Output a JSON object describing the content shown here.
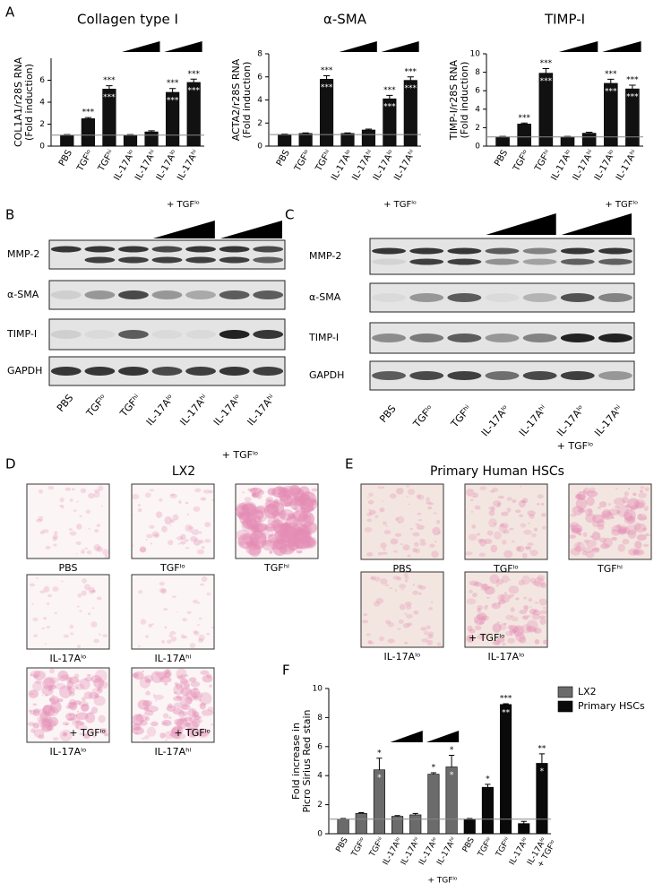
{
  "panel_labels": [
    "A",
    "B",
    "C",
    "D",
    "E",
    "F"
  ],
  "chart_data": [
    {
      "type": "bar",
      "title": "Collagen type I",
      "y_label": [
        "COL1A1/r28S RNA",
        "(Fold induction)"
      ],
      "categories": [
        "PBS",
        "TGFˡᵒ",
        "TGFʰⁱ",
        "IL-17Aˡᵒ",
        "IL-17Aʰⁱ",
        "IL-17Aˡᵒ",
        "IL-17Aʰⁱ"
      ],
      "values": [
        1.0,
        2.5,
        5.2,
        1.0,
        1.3,
        4.9,
        5.8
      ],
      "errors": [
        0.05,
        0.1,
        0.3,
        0.05,
        0.1,
        0.35,
        0.3
      ],
      "sig_above": [
        null,
        "***",
        "***",
        null,
        null,
        "***",
        "***"
      ],
      "sig_inside": [
        null,
        null,
        "***",
        null,
        null,
        "***",
        "***"
      ],
      "color": "#111111",
      "ylim": [
        0,
        8
      ],
      "yticks": [
        0,
        2,
        4,
        6
      ],
      "hline": 1,
      "group_labels": [
        "+ TGFˡᵒ"
      ]
    },
    {
      "type": "bar",
      "title": "α-SMA",
      "y_label": [
        "ACTA2/r28S RNA",
        "(Fold induction)"
      ],
      "categories": [
        "PBS",
        "TGFˡᵒ",
        "TGFʰⁱ",
        "IL-17Aˡᵒ",
        "IL-17Aʰⁱ",
        "IL-17Aˡᵒ",
        "IL-17Aʰⁱ"
      ],
      "values": [
        1.0,
        1.1,
        5.8,
        1.1,
        1.4,
        4.1,
        5.7
      ],
      "errors": [
        0.05,
        0.05,
        0.3,
        0.05,
        0.08,
        0.3,
        0.3
      ],
      "sig_above": [
        null,
        null,
        "***",
        null,
        null,
        "***",
        "***"
      ],
      "sig_inside": [
        null,
        null,
        "***",
        null,
        null,
        "***",
        "***"
      ],
      "color": "#111111",
      "ylim": [
        0,
        8
      ],
      "yticks": [
        0,
        2,
        4,
        6,
        8
      ],
      "hline": 1,
      "group_labels": [
        "+ TGFˡᵒ"
      ]
    },
    {
      "type": "bar",
      "title": "TIMP-I",
      "y_label": [
        "TIMP-I/r28S RNA",
        "(Fold induction)"
      ],
      "categories": [
        "PBS",
        "TGFˡᵒ",
        "TGFʰⁱ",
        "IL-17Aˡᵒ",
        "IL-17Aʰⁱ",
        "IL-17Aˡᵒ",
        "IL-17Aʰⁱ"
      ],
      "values": [
        1.0,
        2.4,
        7.9,
        1.0,
        1.4,
        6.8,
        6.2
      ],
      "errors": [
        0.05,
        0.1,
        0.5,
        0.05,
        0.1,
        0.45,
        0.4
      ],
      "sig_above": [
        null,
        "***",
        "***",
        null,
        null,
        "***",
        "***"
      ],
      "sig_inside": [
        null,
        null,
        "***",
        null,
        null,
        "***",
        "***"
      ],
      "color": "#111111",
      "ylim": [
        0,
        10
      ],
      "yticks": [
        0,
        2,
        4,
        6,
        8,
        10
      ],
      "hline": 1,
      "group_labels": [
        "+ TGFˡᵒ"
      ]
    },
    {
      "type": "bar",
      "y_label": [
        "Fold increase in",
        "Picro Sirius Red stain"
      ],
      "categories": [
        "PBS",
        "TGFˡᵒ",
        "TGFʰⁱ",
        "IL-17Aˡᵒ",
        "IL-17Aʰⁱ",
        "IL-17Aˡᵒ",
        "IL-17Aʰⁱ",
        "PBS",
        "TGFˡᵒ",
        "TGFʰⁱ",
        "IL-17Aˡᵒ",
        "IL-17Aˡᵒ"
      ],
      "series": [
        {
          "name": "LX2",
          "color": "#6b6b6b",
          "values": [
            1.0,
            1.4,
            4.4,
            1.2,
            1.3,
            4.1,
            4.6,
            null,
            null,
            null,
            null,
            null
          ],
          "errors": [
            0.05,
            0.05,
            0.8,
            0.05,
            0.1,
            0.1,
            0.8,
            null,
            null,
            null,
            null,
            null
          ],
          "sig_above": [
            null,
            null,
            "*",
            null,
            null,
            "*",
            "*",
            null,
            null,
            null,
            null,
            null
          ],
          "sig_inside": [
            null,
            null,
            "*",
            null,
            null,
            null,
            "*",
            null,
            null,
            null,
            null,
            null
          ]
        },
        {
          "name": "Primary HSCs",
          "color": "#0a0a0a",
          "values": [
            null,
            null,
            null,
            null,
            null,
            null,
            null,
            1.0,
            3.2,
            8.9,
            0.7,
            4.85
          ],
          "errors": [
            null,
            null,
            null,
            null,
            null,
            null,
            null,
            0.05,
            0.2,
            0.05,
            0.15,
            0.65
          ],
          "sig_above": [
            null,
            null,
            null,
            null,
            null,
            null,
            null,
            null,
            "*",
            "***",
            null,
            "**"
          ],
          "sig_inside": [
            null,
            null,
            null,
            null,
            null,
            null,
            null,
            null,
            null,
            "**",
            null,
            "*"
          ]
        }
      ],
      "ylim": [
        0,
        10
      ],
      "yticks": [
        0,
        2,
        4,
        6,
        8,
        10
      ],
      "hline": 1,
      "legend": "top-right",
      "group_labels": [
        "+ TGFˡᵒ",
        "+ TGFˡᵒ"
      ]
    }
  ],
  "blots": [
    {
      "rows": [
        "MMP-2",
        "α-SMA",
        "TIMP-I",
        "GAPDH"
      ],
      "lanes": [
        "PBS",
        "TGFˡᵒ",
        "TGFʰⁱ",
        "IL-17Aˡᵒ",
        "IL-17Aʰⁱ",
        "IL-17Aˡᵒ",
        "IL-17Aʰⁱ"
      ],
      "group_label": "+ TGFˡᵒ"
    },
    {
      "rows": [
        "MMP-2",
        "α-SMA",
        "TIMP-I",
        "GAPDH"
      ],
      "lanes": [
        "PBS",
        "TGFˡᵒ",
        "TGFʰⁱ",
        "IL-17Aˡᵒ",
        "IL-17Aʰⁱ",
        "IL-17Aˡᵒ",
        "IL-17Aʰⁱ"
      ],
      "group_label": "+ TGFˡᵒ"
    }
  ],
  "micrographs": [
    {
      "title": "LX2",
      "images": [
        {
          "label": "PBS"
        },
        {
          "label": "TGFˡᵒ"
        },
        {
          "label": "TGFʰⁱ"
        },
        {
          "label": "IL-17Aˡᵒ"
        },
        {
          "label": "IL-17Aʰⁱ"
        },
        {
          "label": "IL-17Aˡᵒ",
          "inset": "+ TGFˡᵒ"
        },
        {
          "label": "IL-17Aʰⁱ",
          "inset": "+ TGFˡᵒ"
        }
      ]
    },
    {
      "title": "Primary Human HSCs",
      "images": [
        {
          "label": "PBS"
        },
        {
          "label": "TGFˡᵒ"
        },
        {
          "label": "TGFʰⁱ"
        },
        {
          "label": "IL-17Aˡᵒ"
        },
        {
          "label": "IL-17Aˡᵒ",
          "inset": "+ TGFˡᵒ"
        }
      ]
    }
  ]
}
